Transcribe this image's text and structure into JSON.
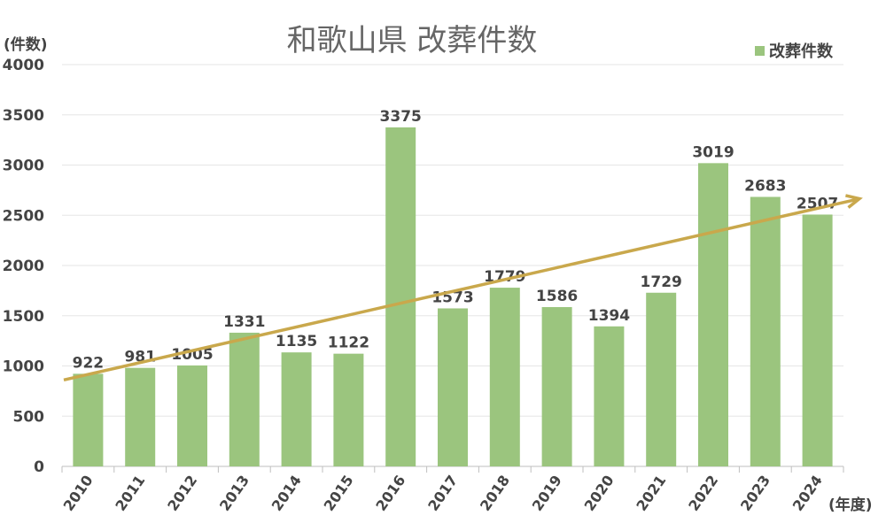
{
  "chart_data": {
    "type": "bar",
    "title": "和歌山県 改葬件数",
    "ylabel": "(件数)",
    "xlabel": "(年度)",
    "categories": [
      "2010",
      "2011",
      "2012",
      "2013",
      "2014",
      "2015",
      "2016",
      "2017",
      "2018",
      "2019",
      "2020",
      "2021",
      "2022",
      "2023",
      "2024"
    ],
    "series": [
      {
        "name": "改葬件数",
        "values": [
          922,
          981,
          1005,
          1331,
          1135,
          1122,
          3375,
          1573,
          1779,
          1586,
          1394,
          1729,
          3019,
          2683,
          2507
        ]
      }
    ],
    "ylim": [
      0,
      4000
    ],
    "yticks": [
      0,
      500,
      1000,
      1500,
      2000,
      2500,
      3000,
      3500,
      4000
    ],
    "grid": true,
    "legend": "top-right",
    "data_labels": true,
    "trendline": {
      "type": "linear",
      "arrow": true,
      "color": "#C9A84C"
    },
    "colors": {
      "bar": "#9BC57E",
      "grid": "#E6E6E6",
      "text": "#444444"
    }
  }
}
